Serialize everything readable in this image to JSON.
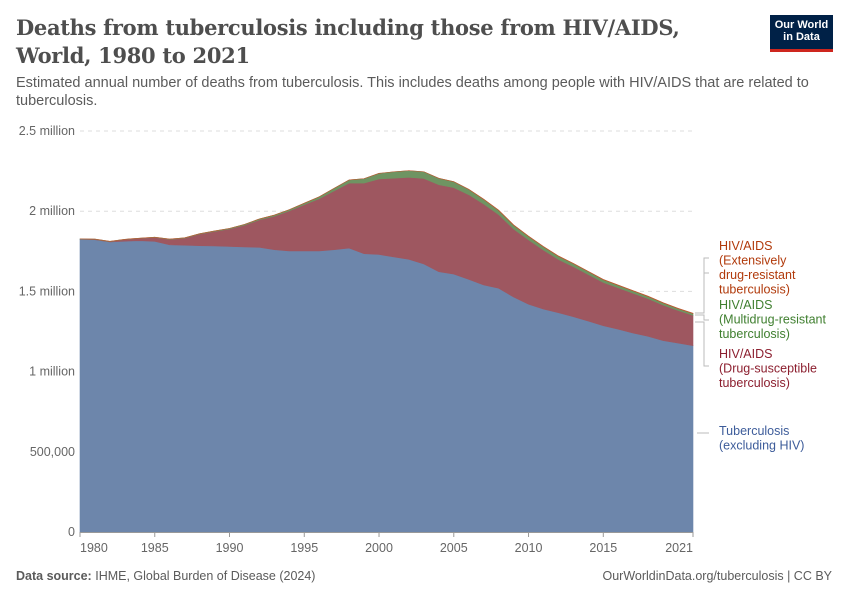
{
  "header": {
    "title": "Deaths from tuberculosis including those from HIV/AIDS, World, 1980 to 2021",
    "subtitle": "Estimated annual number of deaths from tuberculosis. This includes deaths among people with HIV/AIDS that are related to tuberculosis.",
    "logo_line1": "Our World",
    "logo_line2": "in Data"
  },
  "footer": {
    "source_label": "Data source:",
    "source": "IHME, Global Burden of Disease (2024)",
    "credit": "OurWorldinData.org/tuberculosis | CC BY"
  },
  "chart_data": {
    "type": "area",
    "stacked": true,
    "title": "Deaths from tuberculosis including those from HIV/AIDS, World, 1980 to 2021",
    "xlabel": "",
    "ylabel": "",
    "xlim": [
      1980,
      2021
    ],
    "ylim": [
      0,
      2500000
    ],
    "grid": "horizontal dashed",
    "legend_placement": "right",
    "yticks": [
      {
        "value": 0,
        "label": "0"
      },
      {
        "value": 500000,
        "label": "500,000"
      },
      {
        "value": 1000000,
        "label": "1 million"
      },
      {
        "value": 1500000,
        "label": "1.5 million"
      },
      {
        "value": 2000000,
        "label": "2 million"
      },
      {
        "value": 2500000,
        "label": "2.5 million"
      }
    ],
    "xticks": [
      "1980",
      "1985",
      "1990",
      "1995",
      "2000",
      "2005",
      "2010",
      "2015",
      "2021"
    ],
    "x": [
      1980,
      1981,
      1982,
      1983,
      1984,
      1985,
      1986,
      1987,
      1988,
      1989,
      1990,
      1991,
      1992,
      1993,
      1994,
      1995,
      1996,
      1997,
      1998,
      1999,
      2000,
      2001,
      2002,
      2003,
      2004,
      2005,
      2006,
      2007,
      2008,
      2009,
      2010,
      2011,
      2012,
      2013,
      2014,
      2015,
      2016,
      2017,
      2018,
      2019,
      2020,
      2021
    ],
    "series": [
      {
        "name": "Tuberculosis (excluding HIV)",
        "color": "#6d86ab",
        "text_color": "#3d5c9a",
        "values": [
          1825000,
          1822000,
          1808000,
          1813000,
          1816000,
          1812000,
          1790000,
          1788000,
          1785000,
          1783000,
          1780000,
          1777000,
          1775000,
          1760000,
          1752000,
          1752000,
          1752000,
          1760000,
          1770000,
          1735000,
          1730000,
          1715000,
          1700000,
          1671000,
          1623000,
          1608000,
          1575000,
          1540000,
          1520000,
          1465000,
          1420000,
          1390000,
          1367000,
          1342000,
          1315000,
          1286000,
          1264000,
          1240000,
          1220000,
          1193000,
          1178000,
          1162000
        ]
      },
      {
        "name": "HIV/AIDS (Drug-susceptible tuberculosis)",
        "color": "#9e5760",
        "text_color": "#8c1f2f",
        "values": [
          1000,
          3000,
          3000,
          11000,
          15000,
          24000,
          34000,
          44000,
          72000,
          91000,
          109000,
          136000,
          171000,
          209000,
          250000,
          288000,
          326000,
          367000,
          405000,
          440000,
          471000,
          491000,
          511000,
          533000,
          542000,
          539000,
          528000,
          505000,
          459000,
          424000,
          401000,
          367000,
          332000,
          312000,
          290000,
          270000,
          258000,
          248000,
          234000,
          222000,
          203000,
          189000
        ]
      },
      {
        "name": "HIV/AIDS (Multidrug-resistant tuberculosis)",
        "color": "#6f9462",
        "text_color": "#3f7f2f",
        "values": [
          1000,
          1000,
          1000,
          1000,
          1000,
          2000,
          2000,
          2000,
          3000,
          3000,
          4000,
          5000,
          6000,
          7000,
          8000,
          10000,
          12000,
          16000,
          20000,
          28000,
          35000,
          40000,
          42000,
          42000,
          40000,
          37000,
          33000,
          29000,
          26000,
          24000,
          22000,
          21000,
          20000,
          19000,
          18000,
          17000,
          16000,
          15000,
          14000,
          13000,
          12000,
          11000
        ]
      },
      {
        "name": "HIV/AIDS (Extensively drug-resistant tuberculosis)",
        "color": "#c0562f",
        "text_color": "#b13a0b",
        "values": [
          0,
          0,
          0,
          0,
          0,
          0,
          0,
          0,
          0,
          0,
          0,
          0,
          0,
          0,
          0,
          0,
          0,
          0,
          0,
          0,
          0,
          0,
          0,
          0,
          0,
          0,
          1000,
          1000,
          2000,
          2000,
          2000,
          2000,
          2000,
          2000,
          2000,
          2000,
          2000,
          2000,
          2000,
          2000,
          2000,
          2000
        ]
      }
    ],
    "legend": [
      {
        "lines": [
          "HIV/AIDS",
          "(Extensively",
          "drug-resistant",
          "tuberculosis)"
        ],
        "color": "#b13a0b"
      },
      {
        "lines": [
          "HIV/AIDS",
          "(Multidrug-resistant",
          "tuberculosis)"
        ],
        "color": "#3f7f2f"
      },
      {
        "lines": [
          "HIV/AIDS",
          "(Drug-susceptible",
          "tuberculosis)"
        ],
        "color": "#8c1f2f"
      },
      {
        "lines": [
          "Tuberculosis",
          "(excluding HIV)"
        ],
        "color": "#3d5c9a"
      }
    ]
  }
}
